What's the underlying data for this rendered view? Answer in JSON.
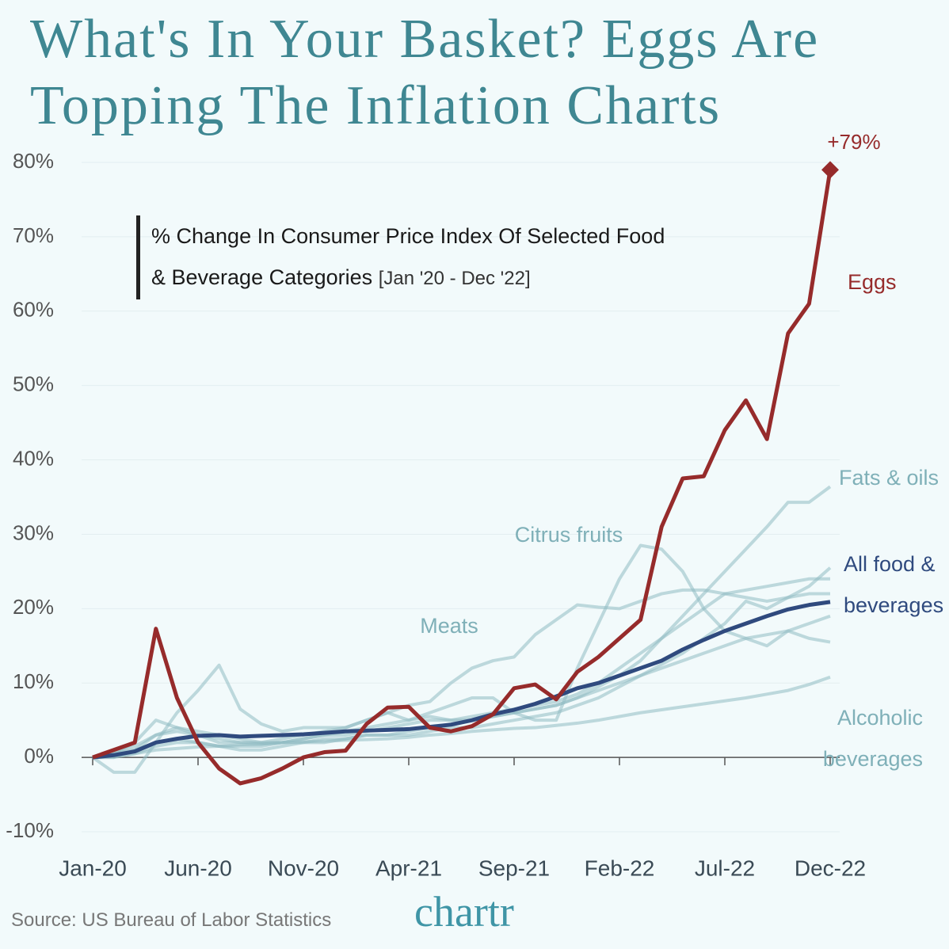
{
  "chart_data": {
    "type": "line",
    "title": "What's In Your Basket? Eggs Are Topping The Inflation Charts",
    "subtitle": "% Change In Consumer Price Index Of Selected Food & Beverage Categories",
    "subtitle_note": "[Jan '20 - Dec '22]",
    "source": "Source: US Bureau of Labor Statistics",
    "logo": "chartr",
    "categories": [
      "Jan-20",
      null,
      null,
      null,
      null,
      "Jun-20",
      null,
      null,
      null,
      null,
      "Nov-20",
      null,
      null,
      null,
      null,
      "Apr-21",
      null,
      null,
      null,
      null,
      "Sep-21",
      null,
      null,
      null,
      null,
      "Feb-22",
      null,
      null,
      null,
      null,
      "Jul-22",
      null,
      null,
      null,
      null,
      "Dec-22"
    ],
    "ylim": [
      -10,
      80
    ],
    "yticks": [
      {
        "value": -10,
        "label": "-10%"
      },
      {
        "value": 0,
        "label": "0%"
      },
      {
        "value": 10,
        "label": "10%"
      },
      {
        "value": 20,
        "label": "20%"
      },
      {
        "value": 30,
        "label": "30%"
      },
      {
        "value": 40,
        "label": "40%"
      },
      {
        "value": 50,
        "label": "50%"
      },
      {
        "value": 60,
        "label": "60%"
      },
      {
        "value": 70,
        "label": "70%"
      },
      {
        "value": 80,
        "label": "80%"
      }
    ],
    "grid": true,
    "series": [
      {
        "name": "Fats & oils",
        "color": "#8fbcc3",
        "values": [
          0,
          0.5,
          1.5,
          3,
          3.5,
          3,
          2.5,
          2,
          1.8,
          2,
          2.5,
          3,
          3.5,
          4,
          4.5,
          5,
          5.5,
          5,
          5,
          5.5,
          6,
          6.5,
          7,
          8,
          9.5,
          11,
          13,
          16,
          19,
          22,
          25,
          28,
          31,
          34.3,
          34.3,
          36.4
        ]
      },
      {
        "name": "Citrus fruits",
        "color": "#8fbcc3",
        "values": [
          0,
          -2,
          -2,
          2,
          6,
          9,
          12.4,
          6.5,
          4.5,
          3.5,
          4,
          4,
          4,
          5,
          6,
          5,
          6,
          7,
          8,
          8,
          6,
          5,
          5,
          12,
          18,
          24,
          28.5,
          28,
          25,
          20,
          17,
          16,
          15,
          17,
          16,
          15.5
        ]
      },
      {
        "name": "Meats",
        "color": "#8fbcc3",
        "values": [
          0,
          0.5,
          2,
          5,
          4,
          3,
          2,
          2,
          2,
          2.5,
          3,
          3.5,
          4,
          5,
          6,
          7,
          7.5,
          10,
          12,
          13,
          13.5,
          16.5,
          18.5,
          20.5,
          20.2,
          20,
          21,
          22,
          22.5,
          22.5,
          22,
          21.5,
          21,
          21.5,
          22,
          22
        ]
      },
      {
        "name": "Alcoholic beverages",
        "color": "#8fbcc3",
        "values": [
          0,
          0.2,
          0.5,
          1,
          1.2,
          1.4,
          1.5,
          1.7,
          1.8,
          2,
          2.1,
          2.2,
          2.3,
          2.4,
          2.5,
          2.7,
          3,
          3.2,
          3.5,
          3.7,
          3.9,
          4,
          4.3,
          4.6,
          5,
          5.5,
          6,
          6.4,
          6.8,
          7.2,
          7.6,
          8,
          8.5,
          9,
          9.8,
          10.8
        ]
      },
      {
        "color": "#8fbcc3",
        "values": [
          0,
          0,
          1,
          3,
          4,
          3.5,
          3,
          2.5,
          2,
          2,
          2.5,
          3,
          3,
          3.5,
          4,
          4.5,
          5,
          5,
          5.5,
          6,
          6.5,
          7,
          7.5,
          8.5,
          10,
          12,
          14,
          16,
          18,
          20,
          22,
          22.5,
          23,
          23.5,
          24,
          24
        ]
      },
      {
        "color": "#8fbcc3",
        "values": [
          0,
          0.5,
          1,
          2,
          2.5,
          2,
          1.5,
          1.5,
          1.5,
          2,
          2,
          2.5,
          2.5,
          3,
          3,
          3.5,
          4,
          4.5,
          5,
          5.5,
          6,
          6.5,
          7,
          8,
          9,
          10,
          11,
          12,
          13,
          14,
          15,
          16,
          16.5,
          17,
          18,
          19
        ]
      },
      {
        "color": "#8fbcc3",
        "values": [
          0,
          0,
          0.5,
          1.5,
          2,
          2,
          1.5,
          1,
          1,
          1.5,
          2,
          2,
          2.5,
          3,
          3,
          3,
          3.5,
          4,
          4,
          4.5,
          5,
          5.5,
          6,
          7,
          8,
          9.5,
          11,
          12.5,
          14,
          16,
          18,
          21,
          20,
          21.5,
          23,
          25.5
        ]
      },
      {
        "name": "All food & beverages",
        "color": "#2f4a7e",
        "values": [
          0,
          0.3,
          0.8,
          2,
          2.5,
          2.9,
          3,
          2.8,
          2.9,
          3,
          3.1,
          3.3,
          3.5,
          3.6,
          3.7,
          3.8,
          4.1,
          4.4,
          5,
          5.8,
          6.4,
          7.2,
          8.2,
          9.3,
          10,
          11,
          12,
          13,
          14.5,
          15.8,
          17,
          18,
          19,
          19.9,
          20.5,
          20.9
        ]
      },
      {
        "name": "Eggs",
        "color": "#962b2b",
        "values": [
          0,
          1,
          2,
          17.3,
          8,
          2,
          -1.5,
          -3.5,
          -2.8,
          -1.5,
          0,
          0.7,
          0.9,
          4.5,
          6.7,
          6.8,
          4,
          3.5,
          4.2,
          5.8,
          9.3,
          9.8,
          7.8,
          11.5,
          13.5,
          16,
          18.5,
          31,
          37.5,
          37.8,
          44,
          48,
          42.8,
          57,
          61,
          79
        ],
        "value_labels": [
          null,
          null,
          null,
          null,
          null,
          null,
          null,
          null,
          null,
          null,
          null,
          null,
          null,
          null,
          null,
          null,
          null,
          null,
          null,
          null,
          null,
          null,
          null,
          null,
          null,
          null,
          null,
          null,
          null,
          null,
          null,
          null,
          null,
          null,
          null,
          "+79%"
        ]
      }
    ]
  }
}
